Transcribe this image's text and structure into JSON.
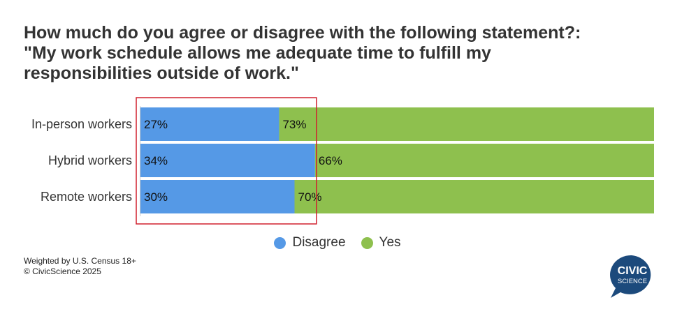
{
  "title_lines": [
    "How much do you agree or disagree with the following statement?:",
    "\"My work schedule allows me adequate time to fulfill my",
    "responsibilities outside of work.\""
  ],
  "chart_data": {
    "type": "bar",
    "orientation": "horizontal",
    "stacked": true,
    "percent_stacked": true,
    "categories": [
      "In-person workers",
      "Hybrid workers",
      "Remote workers"
    ],
    "series": [
      {
        "name": "Disagree",
        "values": [
          27,
          34,
          30
        ],
        "labels": [
          "27%",
          "34%",
          "30%"
        ],
        "color": "#5599e6"
      },
      {
        "name": "Yes",
        "values": [
          73,
          66,
          70
        ],
        "labels": [
          "73%",
          "66%",
          "70%"
        ],
        "color": "#8ec04e"
      }
    ],
    "xlim": [
      0,
      100
    ],
    "grid": false,
    "legend_position": "bottom-center",
    "highlight": {
      "color": "#d0202e",
      "note": "red box around Disagree segments"
    }
  },
  "footnote": {
    "line1": "Weighted by U.S. Census 18+",
    "line2": "© CivicScience 2025"
  },
  "logo": {
    "line1": "CIVIC",
    "line2": "SCIENCE",
    "color": "#1c4a7c"
  }
}
